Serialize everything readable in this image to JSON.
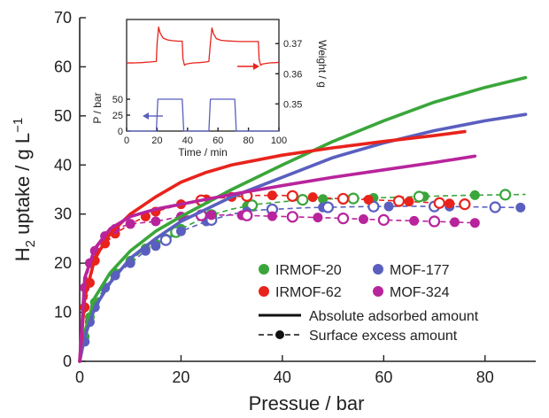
{
  "chart_data": [
    {
      "type": "line",
      "xlabel": "Pressue / bar",
      "ylabel_main": "H",
      "ylabel_sub": "2",
      "ylabel_rest": " uptake / g L",
      "ylabel_sup": "−1",
      "xlim": [
        0,
        90
      ],
      "ylim": [
        0,
        70
      ],
      "xticks": [
        0,
        20,
        40,
        60,
        80
      ],
      "yticks": [
        0,
        10,
        20,
        30,
        40,
        50,
        60,
        70
      ],
      "legend_position": "bottom-right",
      "colors": {
        "IRMOF-20": "#3aa63a",
        "MOF-177": "#5a5fbf",
        "IRMOF-62": "#e8231c",
        "MOF-324": "#b8249c"
      },
      "legend": {
        "series": [
          "IRMOF-20",
          "MOF-177",
          "IRMOF-62",
          "MOF-324"
        ],
        "line_types": [
          "Absolute adsorbed amount",
          "Surface excess amount"
        ]
      },
      "series": [
        {
          "name": "IRMOF-20",
          "absolute": {
            "x": [
              0,
              1,
              3,
              6,
              10,
              15,
              20,
              30,
              40,
              50,
              60,
              70,
              80,
              88
            ],
            "y": [
              0,
              6,
              13,
              18,
              22.5,
              26.5,
              29.5,
              35,
              40,
              44.8,
              49,
              52.8,
              55.8,
              57.8
            ]
          },
          "excess": {
            "x": [
              0,
              1,
              2,
              3,
              5,
              7,
              10,
              13,
              15,
              17,
              20,
              25,
              30,
              35,
              45,
              55,
              65,
              75,
              88
            ],
            "y": [
              0,
              5,
              9,
              12,
              15,
              18,
              20.5,
              23,
              24,
              25,
              27,
              29.5,
              31,
              32,
              33,
              33.2,
              33.5,
              33.8,
              34
            ]
          },
          "excess_filled_x": [
            1,
            2,
            3,
            5,
            7,
            10,
            13,
            15,
            17,
            20,
            25,
            33,
            48,
            58,
            68,
            78
          ],
          "excess_open_x": [
            19,
            26,
            34,
            44,
            54,
            67,
            84
          ]
        },
        {
          "name": "MOF-177",
          "absolute": {
            "x": [
              0,
              1,
              3,
              6,
              10,
              15,
              20,
              30,
              40,
              50,
              60,
              70,
              80,
              88
            ],
            "y": [
              0,
              5,
              11,
              16,
              21,
              25,
              28.5,
              33.5,
              37.5,
              41.5,
              44.5,
              47,
              49,
              50.3
            ]
          },
          "excess": {
            "x": [
              0,
              1,
              2,
              3,
              5,
              7,
              10,
              13,
              15,
              20,
              25,
              30,
              35,
              45,
              55,
              65,
              75,
              88
            ],
            "y": [
              0,
              4,
              8,
              11,
              15,
              17.5,
              20,
              22.5,
              23.5,
              26.5,
              28.5,
              30,
              30.8,
              31.3,
              31.5,
              31.6,
              31.5,
              31.3
            ]
          },
          "excess_filled_x": [
            1,
            2,
            3,
            5,
            7,
            10,
            13,
            15,
            20,
            25,
            33,
            48,
            61,
            73,
            87
          ],
          "excess_open_x": [
            17,
            26,
            38,
            49,
            58,
            70,
            82
          ]
        },
        {
          "name": "IRMOF-62",
          "absolute": {
            "x": [
              0,
              1,
              3,
              6,
              10,
              15,
              20,
              25,
              30,
              40,
              50,
              60,
              70,
              76
            ],
            "y": [
              0,
              13,
              21,
              26,
              30,
              33.5,
              36.5,
              38.5,
              40,
              42,
              43.5,
              44.8,
              46,
              46.8
            ]
          },
          "excess": {
            "x": [
              0,
              1,
              2,
              3,
              5,
              7,
              10,
              13,
              15,
              20,
              25,
              30,
              35,
              40,
              50,
              60,
              70,
              76
            ],
            "y": [
              0,
              11,
              16,
              20.5,
              24,
              26,
              28,
              29.5,
              30.5,
              32,
              33,
              33.5,
              33.8,
              33.8,
              33.2,
              32.8,
              32.3,
              32
            ]
          },
          "excess_filled_x": [
            1,
            2,
            3,
            5,
            7,
            10,
            13,
            15,
            20,
            25,
            30,
            38,
            46,
            57,
            65,
            73
          ],
          "excess_open_x": [
            24,
            33,
            42,
            52,
            63,
            71,
            76
          ]
        },
        {
          "name": "MOF-324",
          "absolute": {
            "x": [
              0,
              1,
              3,
              6,
              10,
              15,
              20,
              30,
              40,
              50,
              60,
              70,
              78
            ],
            "y": [
              0,
              17,
              23,
              27,
              29.5,
              31,
              32,
              34,
              35.8,
              37.5,
              39,
              40.5,
              41.8
            ]
          },
          "excess": {
            "x": [
              0,
              1,
              2,
              3,
              5,
              7,
              10,
              15,
              20,
              25,
              30,
              40,
              50,
              60,
              70,
              78
            ],
            "y": [
              0,
              15,
              20,
              22.5,
              25.5,
              27,
              28,
              28.5,
              29.5,
              29.8,
              29.8,
              29.5,
              29.2,
              28.8,
              28.5,
              28.2
            ]
          },
          "excess_filled_x": [
            1,
            2,
            3,
            5,
            7,
            10,
            15,
            20,
            26,
            32,
            38,
            47,
            56,
            66,
            74,
            78
          ],
          "excess_open_x": [
            24,
            33,
            42,
            52,
            60,
            70
          ]
        }
      ]
    },
    {
      "type": "line",
      "xlabel": "Time / min",
      "ylabel_left": "P / bar",
      "ylabel_right": "Weight / g",
      "xlim": [
        0,
        100
      ],
      "xticks": [
        0,
        20,
        40,
        60,
        80,
        100
      ],
      "ylim_left": [
        0,
        175
      ],
      "yticks_left": [
        0,
        25,
        50
      ],
      "ylim_right": [
        0.341,
        0.378
      ],
      "yticks_right": [
        0.35,
        0.36,
        0.37
      ],
      "colors": {
        "weight": "#e8231c",
        "pressure": "#5a5fbf"
      },
      "series": [
        {
          "name": "",
          "axis": "right",
          "x": [
            0,
            5,
            10,
            15,
            19.5,
            20,
            21,
            22,
            24,
            27,
            30,
            34,
            36.5,
            37,
            38,
            39,
            41,
            44,
            48,
            52,
            54,
            55,
            56,
            57,
            59,
            62,
            66,
            70,
            74,
            79,
            84,
            86.5,
            87,
            88,
            89,
            91,
            94,
            98,
            100
          ],
          "y": [
            0.3636,
            0.3636,
            0.3637,
            0.3639,
            0.3641,
            0.37,
            0.3755,
            0.3735,
            0.3718,
            0.3712,
            0.371,
            0.3708,
            0.3708,
            0.3649,
            0.3628,
            0.3632,
            0.3634,
            0.3636,
            0.3637,
            0.3639,
            0.3641,
            0.37,
            0.3752,
            0.3733,
            0.3716,
            0.3711,
            0.3709,
            0.3708,
            0.3707,
            0.3707,
            0.3707,
            0.3707,
            0.3648,
            0.3628,
            0.3632,
            0.3634,
            0.3636,
            0.3637,
            0.3638
          ]
        },
        {
          "name": "",
          "axis": "left",
          "x": [
            0,
            5,
            19.5,
            20.5,
            36.5,
            37.5,
            54,
            55,
            71,
            72,
            86.5,
            87.5,
            100
          ],
          "y": [
            0,
            0,
            0,
            50,
            50,
            0,
            0,
            50,
            50,
            0,
            0,
            0,
            0
          ]
        }
      ]
    }
  ]
}
